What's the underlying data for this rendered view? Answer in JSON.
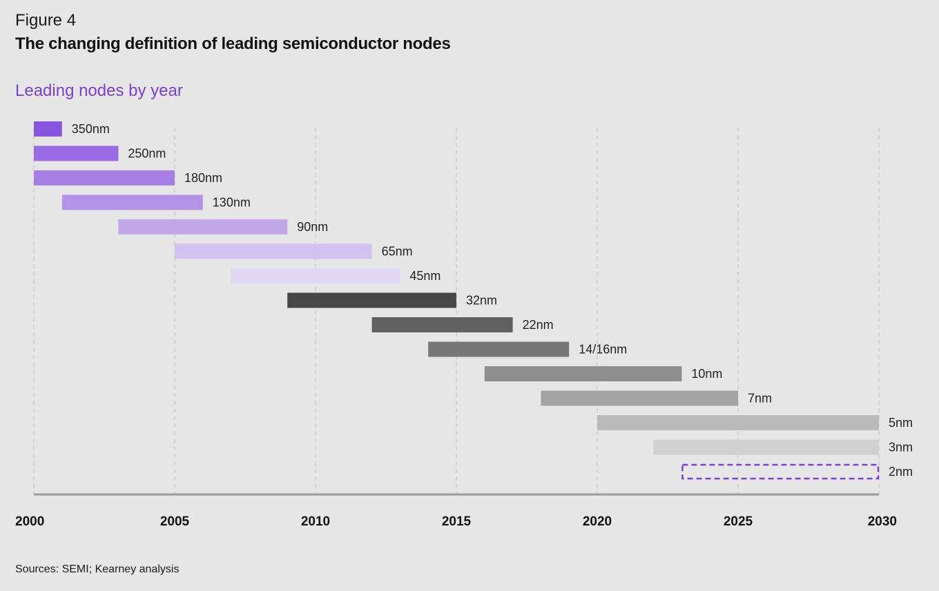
{
  "figure_label": "Figure 4",
  "title": "The changing definition of leading semiconductor nodes",
  "subtitle": "Leading nodes by year",
  "source": "Sources: SEMI; Kearney analysis",
  "colors": {
    "background": "#e6e6e6",
    "accent_purple": "#7b3fd1",
    "grid": "#bdbdbd",
    "axis": "#9a9a9a"
  },
  "chart_data": {
    "type": "bar",
    "orientation": "horizontal-range",
    "xlim": [
      2000,
      2030
    ],
    "x_ticks": [
      2000,
      2005,
      2010,
      2015,
      2020,
      2025,
      2030
    ],
    "grid": "vertical-dashed",
    "series": [
      {
        "label": "350nm",
        "start": 2000,
        "end": 2001,
        "color": "#8a55de"
      },
      {
        "label": "250nm",
        "start": 2000,
        "end": 2003,
        "color": "#9a6be2"
      },
      {
        "label": "180nm",
        "start": 2000,
        "end": 2005,
        "color": "#a67ee4"
      },
      {
        "label": "130nm",
        "start": 2001,
        "end": 2006,
        "color": "#b293e6"
      },
      {
        "label": "90nm",
        "start": 2003,
        "end": 2009,
        "color": "#c2a7ea"
      },
      {
        "label": "65nm",
        "start": 2005,
        "end": 2012,
        "color": "#d3c1ef"
      },
      {
        "label": "45nm",
        "start": 2007,
        "end": 2013,
        "color": "#e2d7f3"
      },
      {
        "label": "32nm",
        "start": 2009,
        "end": 2015,
        "color": "#484848"
      },
      {
        "label": "22nm",
        "start": 2012,
        "end": 2017,
        "color": "#606060"
      },
      {
        "label": "14/16nm",
        "start": 2014,
        "end": 2019,
        "color": "#787878"
      },
      {
        "label": "10nm",
        "start": 2016,
        "end": 2023,
        "color": "#8e8e8e"
      },
      {
        "label": "7nm",
        "start": 2018,
        "end": 2025,
        "color": "#a3a3a3"
      },
      {
        "label": "5nm",
        "start": 2020,
        "end": 2030,
        "color": "#bababa"
      },
      {
        "label": "3nm",
        "start": 2022,
        "end": 2030,
        "color": "#d0d0d0"
      },
      {
        "label": "2nm",
        "start": 2023,
        "end": 2030,
        "color": "#7b3fd1",
        "style": "dashed-outline"
      }
    ]
  }
}
